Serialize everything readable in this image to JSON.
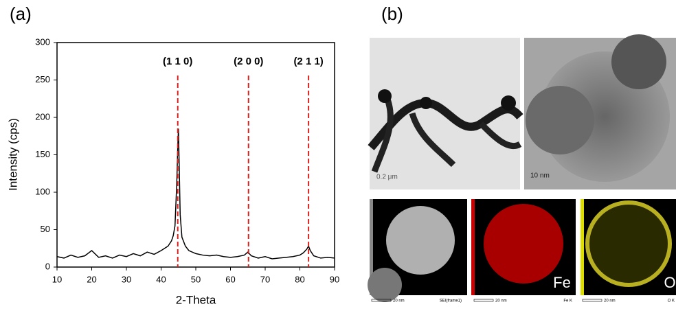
{
  "panel_labels": [
    "(a)",
    "(b)"
  ],
  "chart_data": {
    "type": "line",
    "x_label": "2-Theta",
    "y_label": "Intensity (cps)",
    "x": [
      10,
      12,
      14,
      16,
      18,
      20,
      22,
      24,
      26,
      28,
      30,
      32,
      34,
      36,
      38,
      40,
      41,
      42,
      43,
      43.5,
      44,
      44.5,
      44.8,
      45,
      45.2,
      45.5,
      46,
      47,
      48,
      50,
      52,
      54,
      56,
      58,
      60,
      62,
      64,
      65,
      66,
      68,
      70,
      72,
      74,
      76,
      78,
      80,
      81,
      82,
      82.5,
      83,
      84,
      86,
      88,
      90
    ],
    "series": [
      {
        "color": "#000000",
        "values": [
          14,
          12,
          16,
          13,
          15,
          22,
          13,
          15,
          12,
          16,
          14,
          18,
          15,
          20,
          17,
          22,
          25,
          28,
          35,
          42,
          55,
          110,
          160,
          185,
          140,
          70,
          40,
          28,
          22,
          18,
          16,
          15,
          16,
          14,
          13,
          14,
          16,
          20,
          15,
          12,
          14,
          11,
          12,
          13,
          14,
          16,
          19,
          24,
          28,
          22,
          15,
          12,
          13,
          12
        ]
      }
    ],
    "xlim": [
      10,
      90
    ],
    "xticks": [
      10,
      20,
      30,
      40,
      50,
      60,
      70,
      80,
      90
    ],
    "ylim": [
      0,
      300
    ],
    "yticks": [
      0,
      50,
      100,
      150,
      200,
      250,
      300
    ],
    "grid": false,
    "annotations": [
      {
        "x": 44.8,
        "label": "(1 1 0)"
      },
      {
        "x": 65.2,
        "label": "(2 0 0)"
      },
      {
        "x": 82.5,
        "label": "(2 1 1)"
      }
    ],
    "annotation_color": "#d9211e"
  },
  "images": {
    "tem_low_scale": "0.2 μm",
    "tem_high_scale": "10 nm",
    "maps": [
      {
        "scale": "20 nm",
        "caption": "SEI(frame1)"
      },
      {
        "scale": "20 nm",
        "caption": "Fe K",
        "element": "Fe"
      },
      {
        "scale": "20 nm",
        "caption": "O K",
        "element": "O"
      }
    ]
  }
}
